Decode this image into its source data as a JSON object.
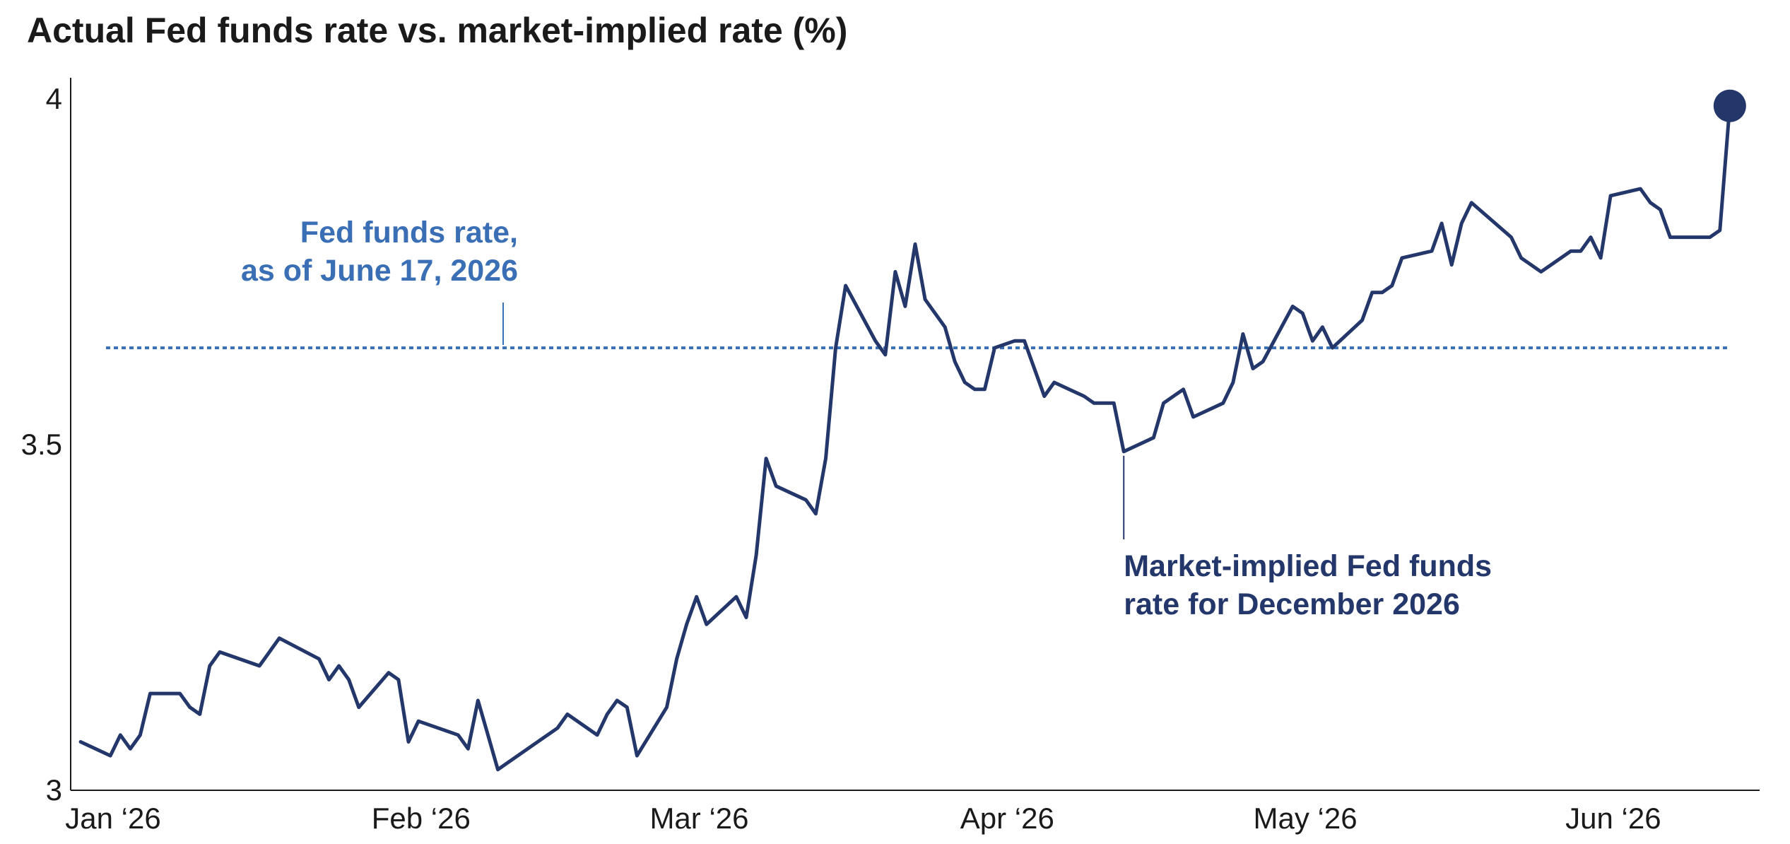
{
  "colors": {
    "series": "#23376b",
    "reference": "#3a6fb5",
    "axis": "#1a1a1a"
  },
  "chart_data": {
    "type": "line",
    "title": "Actual Fed funds rate vs. market-implied rate (%)",
    "xlabel": "",
    "ylabel": "",
    "ylim": [
      3,
      4
    ],
    "yticks": [
      {
        "value": 3,
        "label": "3"
      },
      {
        "value": 3.5,
        "label": "3.5"
      },
      {
        "value": 4,
        "label": "4"
      }
    ],
    "xlim": [
      "2026-01-01",
      "2026-06-20"
    ],
    "xticks": [
      {
        "date": "2026-01-01",
        "label": "Jan ‘26"
      },
      {
        "date": "2026-02-01",
        "label": "Feb ‘26"
      },
      {
        "date": "2026-03-01",
        "label": "Mar ‘26"
      },
      {
        "date": "2026-04-01",
        "label": "Apr ‘26"
      },
      {
        "date": "2026-05-01",
        "label": "May ‘26"
      },
      {
        "date": "2026-06-01",
        "label": "Jun ‘26"
      }
    ],
    "grid": false,
    "reference_line": {
      "value": 3.64,
      "label_lines": [
        "Fed funds rate,",
        "as of June 17, 2026"
      ],
      "style": "dotted"
    },
    "series": [
      {
        "annotation_lines": [
          "Market-implied Fed funds",
          "rate for December 2026"
        ],
        "points": [
          [
            "2026-01-02",
            3.07
          ],
          [
            "2026-01-05",
            3.05
          ],
          [
            "2026-01-06",
            3.08
          ],
          [
            "2026-01-07",
            3.06
          ],
          [
            "2026-01-08",
            3.08
          ],
          [
            "2026-01-09",
            3.14
          ],
          [
            "2026-01-12",
            3.14
          ],
          [
            "2026-01-13",
            3.12
          ],
          [
            "2026-01-14",
            3.11
          ],
          [
            "2026-01-15",
            3.18
          ],
          [
            "2026-01-16",
            3.2
          ],
          [
            "2026-01-20",
            3.18
          ],
          [
            "2026-01-21",
            3.2
          ],
          [
            "2026-01-22",
            3.22
          ],
          [
            "2026-01-26",
            3.19
          ],
          [
            "2026-01-27",
            3.16
          ],
          [
            "2026-01-28",
            3.18
          ],
          [
            "2026-01-29",
            3.16
          ],
          [
            "2026-01-30",
            3.12
          ],
          [
            "2026-02-02",
            3.17
          ],
          [
            "2026-02-03",
            3.16
          ],
          [
            "2026-02-04",
            3.07
          ],
          [
            "2026-02-05",
            3.1
          ],
          [
            "2026-02-09",
            3.08
          ],
          [
            "2026-02-10",
            3.06
          ],
          [
            "2026-02-11",
            3.13
          ],
          [
            "2026-02-12",
            3.08
          ],
          [
            "2026-02-13",
            3.03
          ],
          [
            "2026-02-17",
            3.07
          ],
          [
            "2026-02-18",
            3.08
          ],
          [
            "2026-02-19",
            3.09
          ],
          [
            "2026-02-20",
            3.11
          ],
          [
            "2026-02-23",
            3.08
          ],
          [
            "2026-02-24",
            3.11
          ],
          [
            "2026-02-25",
            3.13
          ],
          [
            "2026-02-26",
            3.12
          ],
          [
            "2026-02-27",
            3.05
          ],
          [
            "2026-03-02",
            3.12
          ],
          [
            "2026-03-03",
            3.19
          ],
          [
            "2026-03-04",
            3.24
          ],
          [
            "2026-03-05",
            3.28
          ],
          [
            "2026-03-06",
            3.24
          ],
          [
            "2026-03-09",
            3.28
          ],
          [
            "2026-03-10",
            3.25
          ],
          [
            "2026-03-11",
            3.34
          ],
          [
            "2026-03-12",
            3.48
          ],
          [
            "2026-03-13",
            3.44
          ],
          [
            "2026-03-16",
            3.42
          ],
          [
            "2026-03-17",
            3.4
          ],
          [
            "2026-03-18",
            3.48
          ],
          [
            "2026-03-19",
            3.64
          ],
          [
            "2026-03-20",
            3.73
          ],
          [
            "2026-03-23",
            3.65
          ],
          [
            "2026-03-24",
            3.63
          ],
          [
            "2026-03-25",
            3.75
          ],
          [
            "2026-03-26",
            3.7
          ],
          [
            "2026-03-27",
            3.79
          ],
          [
            "2026-03-28",
            3.71
          ],
          [
            "2026-03-30",
            3.67
          ],
          [
            "2026-03-31",
            3.62
          ],
          [
            "2026-04-01",
            3.59
          ],
          [
            "2026-04-02",
            3.58
          ],
          [
            "2026-04-03",
            3.58
          ],
          [
            "2026-04-04",
            3.64
          ],
          [
            "2026-04-06",
            3.65
          ],
          [
            "2026-04-07",
            3.65
          ],
          [
            "2026-04-08",
            3.61
          ],
          [
            "2026-04-09",
            3.57
          ],
          [
            "2026-04-10",
            3.59
          ],
          [
            "2026-04-13",
            3.57
          ],
          [
            "2026-04-14",
            3.56
          ],
          [
            "2026-04-15",
            3.56
          ],
          [
            "2026-04-16",
            3.56
          ],
          [
            "2026-04-17",
            3.49
          ],
          [
            "2026-04-20",
            3.51
          ],
          [
            "2026-04-21",
            3.56
          ],
          [
            "2026-04-22",
            3.57
          ],
          [
            "2026-04-23",
            3.58
          ],
          [
            "2026-04-24",
            3.54
          ],
          [
            "2026-04-27",
            3.56
          ],
          [
            "2026-04-28",
            3.59
          ],
          [
            "2026-04-29",
            3.66
          ],
          [
            "2026-04-30",
            3.61
          ],
          [
            "2026-05-01",
            3.62
          ],
          [
            "2026-05-04",
            3.7
          ],
          [
            "2026-05-05",
            3.69
          ],
          [
            "2026-05-06",
            3.65
          ],
          [
            "2026-05-07",
            3.67
          ],
          [
            "2026-05-08",
            3.64
          ],
          [
            "2026-05-11",
            3.68
          ],
          [
            "2026-05-12",
            3.72
          ],
          [
            "2026-05-13",
            3.72
          ],
          [
            "2026-05-14",
            3.73
          ],
          [
            "2026-05-15",
            3.77
          ],
          [
            "2026-05-18",
            3.78
          ],
          [
            "2026-05-19",
            3.82
          ],
          [
            "2026-05-20",
            3.76
          ],
          [
            "2026-05-21",
            3.82
          ],
          [
            "2026-05-22",
            3.85
          ],
          [
            "2026-05-26",
            3.8
          ],
          [
            "2026-05-27",
            3.77
          ],
          [
            "2026-05-29",
            3.75
          ],
          [
            "2026-06-01",
            3.78
          ],
          [
            "2026-06-02",
            3.78
          ],
          [
            "2026-06-03",
            3.8
          ],
          [
            "2026-06-04",
            3.77
          ],
          [
            "2026-06-05",
            3.86
          ],
          [
            "2026-06-08",
            3.87
          ],
          [
            "2026-06-09",
            3.85
          ],
          [
            "2026-06-10",
            3.84
          ],
          [
            "2026-06-11",
            3.8
          ],
          [
            "2026-06-12",
            3.8
          ],
          [
            "2026-06-15",
            3.8
          ],
          [
            "2026-06-16",
            3.81
          ],
          [
            "2026-06-17",
            3.99
          ]
        ]
      }
    ]
  }
}
